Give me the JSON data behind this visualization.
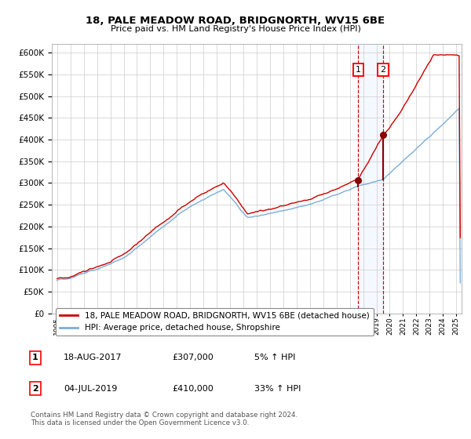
{
  "title1": "18, PALE MEADOW ROAD, BRIDGNORTH, WV15 6BE",
  "title2": "Price paid vs. HM Land Registry's House Price Index (HPI)",
  "legend1": "18, PALE MEADOW ROAD, BRIDGNORTH, WV15 6BE (detached house)",
  "legend2": "HPI: Average price, detached house, Shropshire",
  "sale1_date": "18-AUG-2017",
  "sale1_price": 307000,
  "sale1_label": "1",
  "sale1_pct": "5% ↑ HPI",
  "sale2_date": "04-JUL-2019",
  "sale2_price": 410000,
  "sale2_label": "2",
  "sale2_pct": "33% ↑ HPI",
  "footnote": "Contains HM Land Registry data © Crown copyright and database right 2024.\nThis data is licensed under the Open Government Licence v3.0.",
  "hpi_color": "#7aaed6",
  "price_color": "#cc0000",
  "marker_color": "#880000",
  "dashed_color": "#cc0000",
  "shade_color": "#ddeeff",
  "grid_color": "#cccccc",
  "bg_color": "#ffffff",
  "title_color": "#000000",
  "ylim_min": 0,
  "ylim_max": 620000,
  "ytick_step": 50000,
  "sale1_year": 2017.63,
  "sale2_year": 2019.5,
  "xmin": 1994.6,
  "xmax": 2025.4
}
